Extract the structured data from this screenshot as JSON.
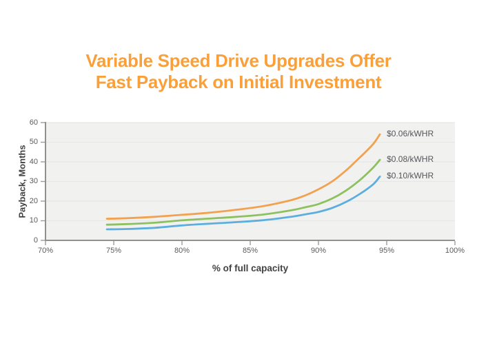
{
  "title": {
    "line1": "Variable Speed Drive Upgrades Offer",
    "line2": "Fast Payback on Initial Investment",
    "color": "#F9A03A"
  },
  "chart_data": {
    "type": "line",
    "title": "Variable Speed Drive Upgrades Offer Fast Payback on Initial Investment",
    "xlabel": "% of full capacity",
    "ylabel": "Payback, Months",
    "xlim": [
      70,
      100
    ],
    "ylim": [
      0,
      60
    ],
    "x_tick_labels": [
      "70%",
      "75%",
      "80%",
      "85%",
      "90%",
      "95%",
      "100%"
    ],
    "x_tick_values": [
      70,
      75,
      80,
      85,
      90,
      95,
      100
    ],
    "y_tick_values": [
      0,
      10,
      20,
      30,
      40,
      50,
      60
    ],
    "grid": "horizontal gridlines every 10, light on gray plot background",
    "legend_position": "labels at right end of each line",
    "series": [
      {
        "name": "$0.06/kWHR",
        "color": "#F2A14E",
        "points": [
          [
            74.5,
            11
          ],
          [
            76,
            11.3
          ],
          [
            78,
            12
          ],
          [
            80,
            13
          ],
          [
            82,
            14.1
          ],
          [
            84,
            15.6
          ],
          [
            86,
            17.5
          ],
          [
            88,
            20.5
          ],
          [
            89,
            22.8
          ],
          [
            90,
            26
          ],
          [
            91,
            30
          ],
          [
            92,
            35.5
          ],
          [
            93,
            42
          ],
          [
            94,
            49
          ],
          [
            94.5,
            54
          ]
        ]
      },
      {
        "name": "$0.08/kWHR",
        "color": "#8DC05F",
        "points": [
          [
            74.5,
            8
          ],
          [
            76,
            8.3
          ],
          [
            78,
            9
          ],
          [
            80,
            10.2
          ],
          [
            82,
            11.1
          ],
          [
            84,
            12
          ],
          [
            86,
            13.2
          ],
          [
            88,
            15.3
          ],
          [
            89,
            16.8
          ],
          [
            90,
            18.5
          ],
          [
            91,
            21.3
          ],
          [
            92,
            25.3
          ],
          [
            93,
            30.5
          ],
          [
            94,
            37
          ],
          [
            94.5,
            41
          ]
        ]
      },
      {
        "name": "$0.10/kWHR",
        "color": "#5CAEDF",
        "points": [
          [
            74.5,
            5.6
          ],
          [
            76,
            5.8
          ],
          [
            78,
            6.4
          ],
          [
            80,
            7.6
          ],
          [
            82,
            8.5
          ],
          [
            84,
            9.3
          ],
          [
            86,
            10.3
          ],
          [
            88,
            12
          ],
          [
            89,
            13.2
          ],
          [
            90,
            14.5
          ],
          [
            91,
            16.5
          ],
          [
            92,
            19.5
          ],
          [
            93,
            23.5
          ],
          [
            94,
            28.5
          ],
          [
            94.5,
            32.5
          ]
        ]
      }
    ]
  },
  "style": {
    "plot_background": "#F1F1F0",
    "grid_color": "#E7E7E6",
    "spine_color": "#909090",
    "tick_color": "#9B9B9B",
    "tick_text_color": "#5A5A5C",
    "axis_title_color": "#424242",
    "series_label_color": "#55565A"
  }
}
